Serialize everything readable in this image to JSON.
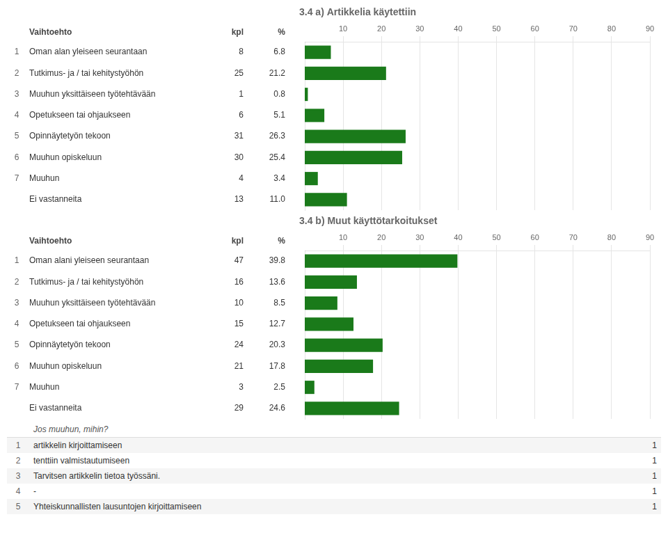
{
  "chart_data": [
    {
      "type": "bar",
      "orientation": "horizontal",
      "title": "3.4 a) Artikkelia käytettiin",
      "column_headers": [
        "Vaihtoehto",
        "kpl",
        "%"
      ],
      "row_numbers": [
        "1",
        "2",
        "3",
        "4",
        "5",
        "6",
        "7",
        null
      ],
      "categories": [
        "Oman alan yleiseen seurantaan",
        "Tutkimus- ja / tai kehitystyöhön",
        "Muuhun yksittäiseen työtehtävään",
        "Opetukseen tai ohjaukseen",
        "Opinnäytetyön tekoon",
        "Muuhun opiskeluun",
        "Muuhun",
        "Ei vastanneita"
      ],
      "counts": [
        8,
        25,
        1,
        6,
        31,
        30,
        4,
        13
      ],
      "values": [
        6.8,
        21.2,
        0.8,
        5.1,
        26.3,
        25.4,
        3.4,
        11.0
      ],
      "value_labels": [
        "6.8",
        "21.2",
        "0.8",
        "5.1",
        "26.3",
        "25.4",
        "3.4",
        "11.0"
      ],
      "data_labels": true,
      "color": "#1a7a1a",
      "xlim": [
        0,
        90
      ],
      "xticks": [
        10,
        20,
        30,
        40,
        50,
        60,
        70,
        80,
        90
      ],
      "grid": true
    },
    {
      "type": "bar",
      "orientation": "horizontal",
      "title": "3.4 b) Muut käyttötarkoitukset",
      "column_headers": [
        "Vaihtoehto",
        "kpl",
        "%"
      ],
      "row_numbers": [
        "1",
        "2",
        "3",
        "4",
        "5",
        "6",
        "7",
        null
      ],
      "categories": [
        "Oman alani yleiseen seurantaan",
        "Tutkimus- ja / tai kehitystyöhön",
        "Muuhun yksittäiseen työtehtävään",
        "Opetukseen tai ohjaukseen",
        "Opinnäytetyön tekoon",
        "Muuhun opiskeluun",
        "Muuhun",
        "Ei vastanneita"
      ],
      "counts": [
        47,
        16,
        10,
        15,
        24,
        21,
        3,
        29
      ],
      "values": [
        39.8,
        13.6,
        8.5,
        12.7,
        20.3,
        17.8,
        2.5,
        24.6
      ],
      "value_labels": [
        "39.8",
        "13.6",
        "8.5",
        "12.7",
        "20.3",
        "17.8",
        "2.5",
        "24.6"
      ],
      "data_labels": true,
      "color": "#1a7a1a",
      "xlim": [
        0,
        90
      ],
      "xticks": [
        10,
        20,
        30,
        40,
        50,
        60,
        70,
        80,
        90
      ],
      "grid": true,
      "notes": {
        "title": "Jos muuhun, mihin?",
        "rows": [
          {
            "num": "1",
            "label": "artikkelin kirjoittamiseen",
            "value": 1
          },
          {
            "num": "2",
            "label": "tenttiin valmistautumiseen",
            "value": 1
          },
          {
            "num": "3",
            "label": "Tarvitsen artikkelin tietoa työssäni.",
            "value": 1
          },
          {
            "num": "4",
            "label": "-",
            "value": 1
          },
          {
            "num": "5",
            "label": "Yhteiskunnallisten lausuntojen kirjoittamiseen",
            "value": 1
          }
        ]
      }
    }
  ]
}
